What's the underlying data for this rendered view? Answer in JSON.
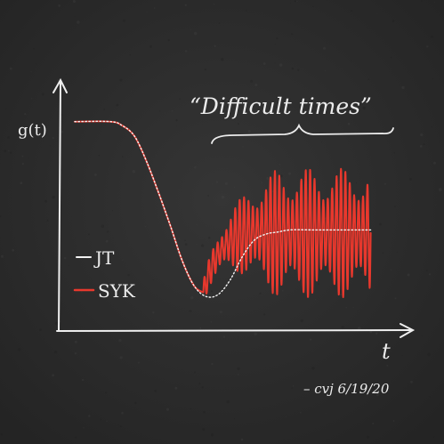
{
  "chart_data": {
    "type": "line",
    "title": "",
    "annotation": "“Difficult times”",
    "xlabel": "t",
    "ylabel": "g(t)",
    "ylim": [
      0,
      1
    ],
    "xlim": [
      0,
      10
    ],
    "grid": false,
    "legend_position": "center-left",
    "series": [
      {
        "name": "JT",
        "color": "#f2f2f2",
        "x": [
          0,
          1.2,
          1.6,
          2.0,
          2.4,
          2.8,
          3.2,
          3.6,
          4.0,
          4.4,
          4.8,
          5.2,
          5.6,
          6.0,
          6.4,
          6.8,
          7.2,
          8,
          9,
          9.9
        ],
        "y": [
          0.92,
          0.92,
          0.9,
          0.85,
          0.73,
          0.58,
          0.42,
          0.25,
          0.13,
          0.08,
          0.09,
          0.16,
          0.27,
          0.35,
          0.38,
          0.39,
          0.4,
          0.4,
          0.4,
          0.4
        ]
      },
      {
        "name": "SYK",
        "color": "#e8382d",
        "x": [
          0,
          1.2,
          1.6,
          2.0,
          2.4,
          2.8,
          3.2,
          3.6,
          4.0,
          4.3
        ],
        "y": [
          0.92,
          0.92,
          0.9,
          0.85,
          0.73,
          0.58,
          0.42,
          0.25,
          0.13,
          0.1
        ],
        "oscillation": {
          "t_start": 4.3,
          "t_end": 9.9,
          "baseline": 0.4,
          "amplitude": [
            0.05,
            0.31
          ],
          "min_value": 0.06,
          "cycles": 38
        }
      }
    ]
  },
  "legend": {
    "jt_label": "JT",
    "syk_label": "SYK"
  },
  "signature": "– cvj  6/19/20"
}
